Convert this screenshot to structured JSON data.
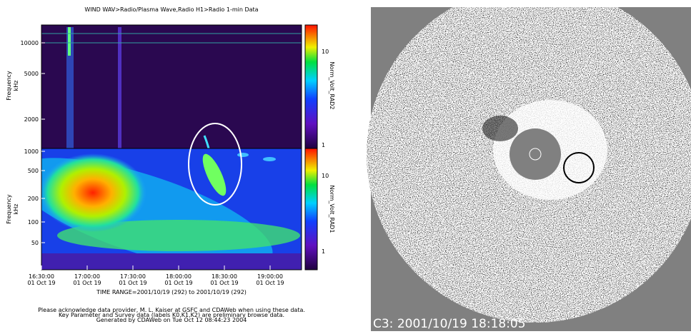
{
  "spectrogram": {
    "title": "WIND   WAV>Radio/Plasma Wave,Radio   H1>Radio 1-min Data",
    "upper": {
      "y_label": [
        "Frequency",
        "kHz"
      ],
      "y_ticks": [
        "10000",
        "5000",
        "2000",
        "1000"
      ],
      "colorbar_title": "Norm_Volt_RAD2",
      "colorbar_ticks": [
        "10",
        "1"
      ]
    },
    "lower": {
      "y_label": [
        "Frequency",
        "kHz"
      ],
      "y_ticks": [
        "500",
        "200",
        "100",
        "50"
      ],
      "colorbar_title": "Norm_Volt_RAD1",
      "colorbar_ticks": [
        "10",
        "1"
      ]
    },
    "x_ticks": [
      "16:30:00",
      "17:00:00",
      "17:30:00",
      "18:00:00",
      "18:30:00",
      "19:00:00"
    ],
    "x_date": "01 Oct 19",
    "time_range": "TIME RANGE=2001/10/19 (292) to 2001/10/19 (292)",
    "footer": [
      "Please acknowledge data provider, M. L. Kaiser at GSFC and CDAWeb when using these data.",
      "Key Parameter and Survey data (labels K0,K1,K2) are preliminary browse data.",
      "Generated by CDAWeb on Tue Oct 12 08:44:23 2004"
    ]
  },
  "coronagraph": {
    "caption": "C3: 2001/10/19 18:18:05"
  }
}
